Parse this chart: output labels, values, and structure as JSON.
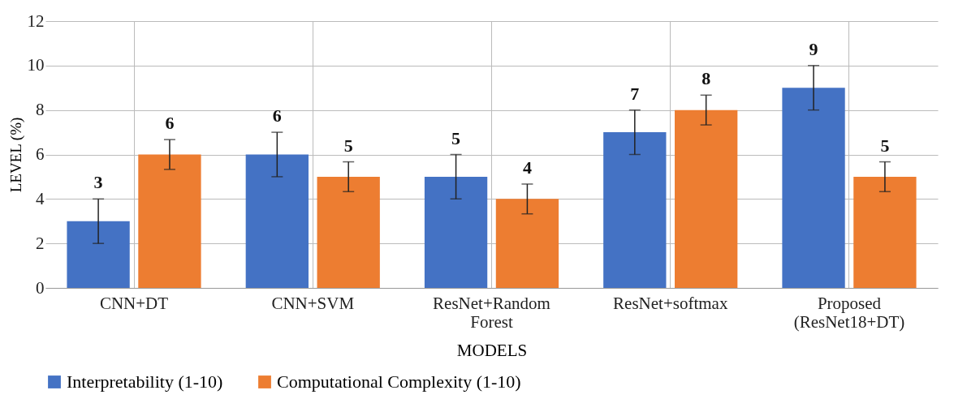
{
  "chart_data": {
    "type": "bar",
    "xlabel": "MODELS",
    "ylabel": "LEVEL (%)",
    "categories": [
      "CNN+DT",
      "CNN+SVM",
      "ResNet+Random Forest",
      "ResNet+softmax",
      "Proposed (ResNet18+DT)"
    ],
    "series": [
      {
        "name": "Interpretability (1-10)",
        "color": "#4472c4",
        "values": [
          3,
          6,
          5,
          7,
          9
        ],
        "errors": [
          1,
          1,
          1,
          1,
          1
        ]
      },
      {
        "name": "Computational Complexity (1-10)",
        "color": "#ed7d31",
        "values": [
          6,
          5,
          4,
          8,
          5
        ],
        "errors": [
          0.67,
          0.67,
          0.67,
          0.67,
          0.67
        ]
      }
    ],
    "ylim": [
      0,
      12
    ],
    "yticks": [
      0,
      2,
      4,
      6,
      8,
      10,
      12
    ],
    "grid": true,
    "legend": "bottom",
    "data_labels": true
  }
}
